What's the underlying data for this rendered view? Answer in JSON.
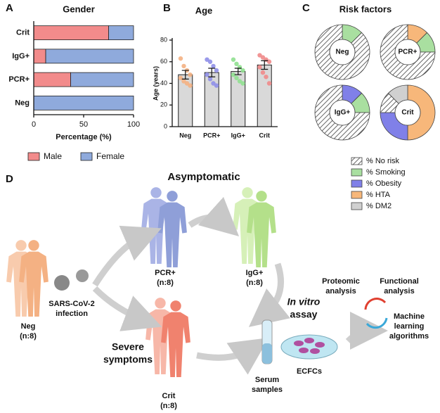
{
  "chart_data": [
    {
      "type": "bar",
      "orientation": "horizontal",
      "stacked": true,
      "panel": "A",
      "title": "Gender",
      "xlabel": "Percentage (%)",
      "categories": [
        "Crit",
        "IgG+",
        "PCR+",
        "Neg"
      ],
      "series": [
        {
          "name": "Male",
          "color": "#f28b8b",
          "values": [
            75,
            12,
            37,
            0
          ]
        },
        {
          "name": "Female",
          "color": "#8faadc",
          "values": [
            25,
            88,
            63,
            100
          ]
        }
      ],
      "xlim": [
        0,
        100
      ],
      "xticks": [
        0,
        50,
        100
      ]
    },
    {
      "type": "bar",
      "panel": "B",
      "title": "Age",
      "ylabel": "Age (years)",
      "color": "#d9d9d9",
      "categories": [
        "Neg",
        "PCR+",
        "IgG+",
        "Crit"
      ],
      "values": [
        48,
        50,
        51,
        57
      ],
      "errors": [
        4,
        4,
        3,
        4
      ],
      "point_colors": [
        "#f4b183",
        "#8f8fe8",
        "#90e090",
        "#f08a8a"
      ],
      "points": [
        [
          63,
          56,
          52,
          48,
          45,
          42,
          40,
          38
        ],
        [
          62,
          60,
          56,
          52,
          48,
          44,
          40,
          38
        ],
        [
          62,
          58,
          55,
          52,
          48,
          45,
          42,
          40
        ],
        [
          66,
          64,
          62,
          60,
          55,
          50,
          46,
          40
        ]
      ],
      "ylim": [
        0,
        80
      ],
      "yticks": [
        0,
        20,
        40,
        60,
        80
      ]
    },
    {
      "type": "pie",
      "donut": true,
      "panel": "C",
      "title": "Risk factors",
      "series": [
        {
          "name": "% No risk",
          "color": "#ffffff",
          "pattern": "hatch"
        },
        {
          "name": "% Smoking",
          "color": "#a9dfa0"
        },
        {
          "name": "% Obesity",
          "color": "#8080e8"
        },
        {
          "name": "% HTA",
          "color": "#f7b77a"
        },
        {
          "name": "% DM2",
          "color": "#d0d0d0"
        }
      ],
      "charts": [
        {
          "label": "Neg",
          "values": [
            87.5,
            12.5,
            0,
            0,
            0
          ]
        },
        {
          "label": "PCR+",
          "values": [
            75,
            12.5,
            0,
            12.5,
            0
          ]
        },
        {
          "label": "IgG+",
          "values": [
            75,
            12.5,
            12.5,
            0,
            0
          ]
        },
        {
          "label": "Crit",
          "values": [
            12.5,
            0,
            25,
            50,
            12.5
          ]
        }
      ]
    }
  ],
  "diagram": {
    "panel": "D",
    "asymptomatic": "Asymptomatic",
    "severe": [
      "Severe",
      "symptoms"
    ],
    "neg": [
      "Neg",
      "(n:8)"
    ],
    "pcr": [
      "PCR+",
      "(n:8)"
    ],
    "igg": [
      "IgG+",
      "(n:8)"
    ],
    "crit": [
      "Crit",
      "(n:8)"
    ],
    "infection": [
      "SARS-CoV-2",
      "infection"
    ],
    "serum": [
      "Serum",
      "samples"
    ],
    "invitro": [
      "In vitro",
      "assay"
    ],
    "ecfc": "ECFCs",
    "proteomic": [
      "Proteomic",
      "analysis"
    ],
    "functional": [
      "Functional",
      "analysis"
    ],
    "ml": [
      "Machine",
      "learning",
      "algorithms"
    ]
  }
}
